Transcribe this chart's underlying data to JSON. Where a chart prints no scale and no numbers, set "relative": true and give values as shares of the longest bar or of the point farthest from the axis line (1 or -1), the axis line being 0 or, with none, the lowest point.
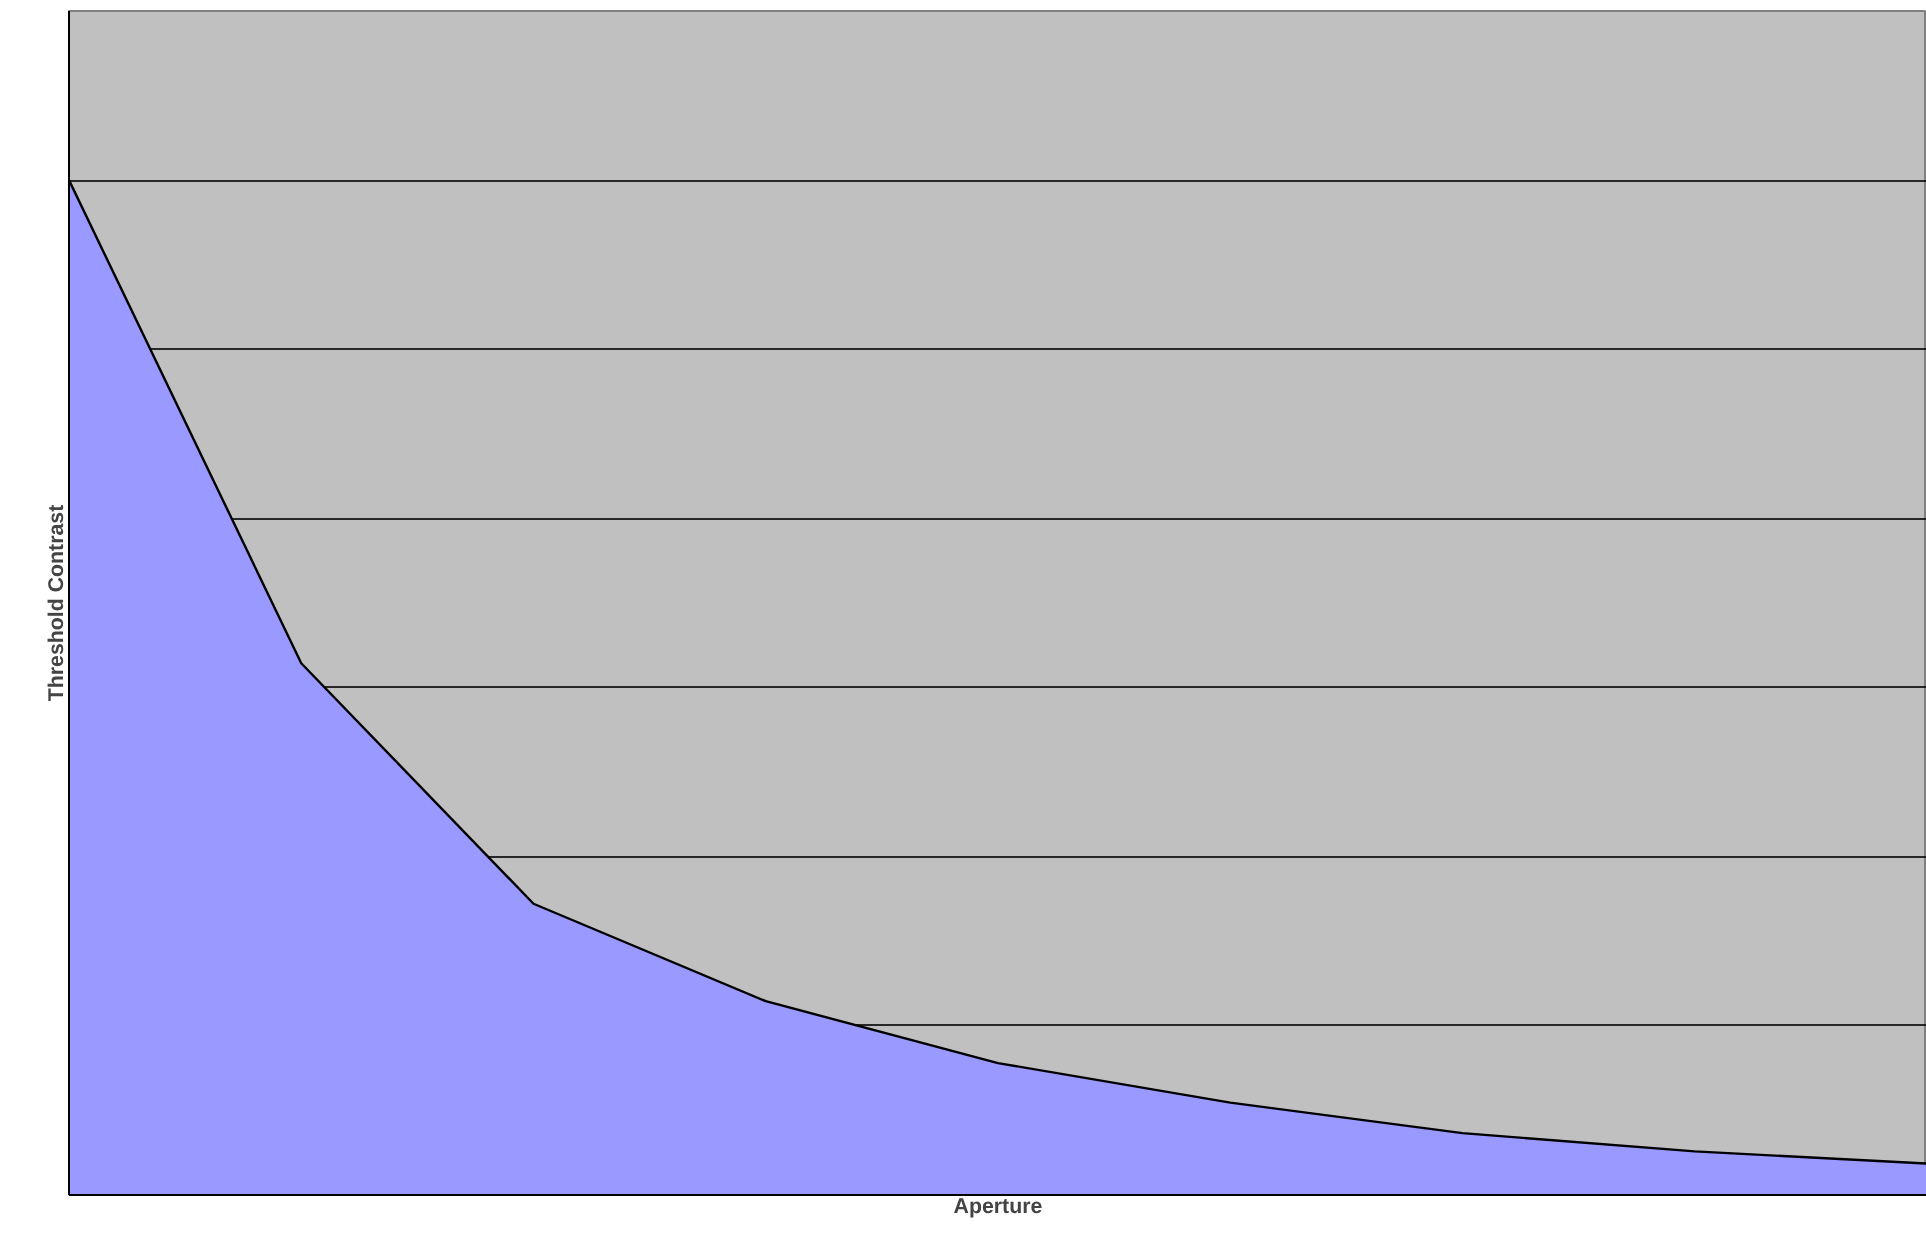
{
  "chart_data": {
    "type": "area",
    "relative": true,
    "xlabel": "Aperture",
    "ylabel": "Threshold Contrast",
    "categories": [
      null,
      null,
      null,
      null,
      null,
      null,
      null,
      null,
      null
    ],
    "series": [
      {
        "color": "#9999ff",
        "values": [
          1,
          0.524,
          0.287,
          0.191,
          0.13,
          0.091,
          0.061,
          0.043,
          0.031
        ]
      }
    ],
    "grid": "y"
  }
}
